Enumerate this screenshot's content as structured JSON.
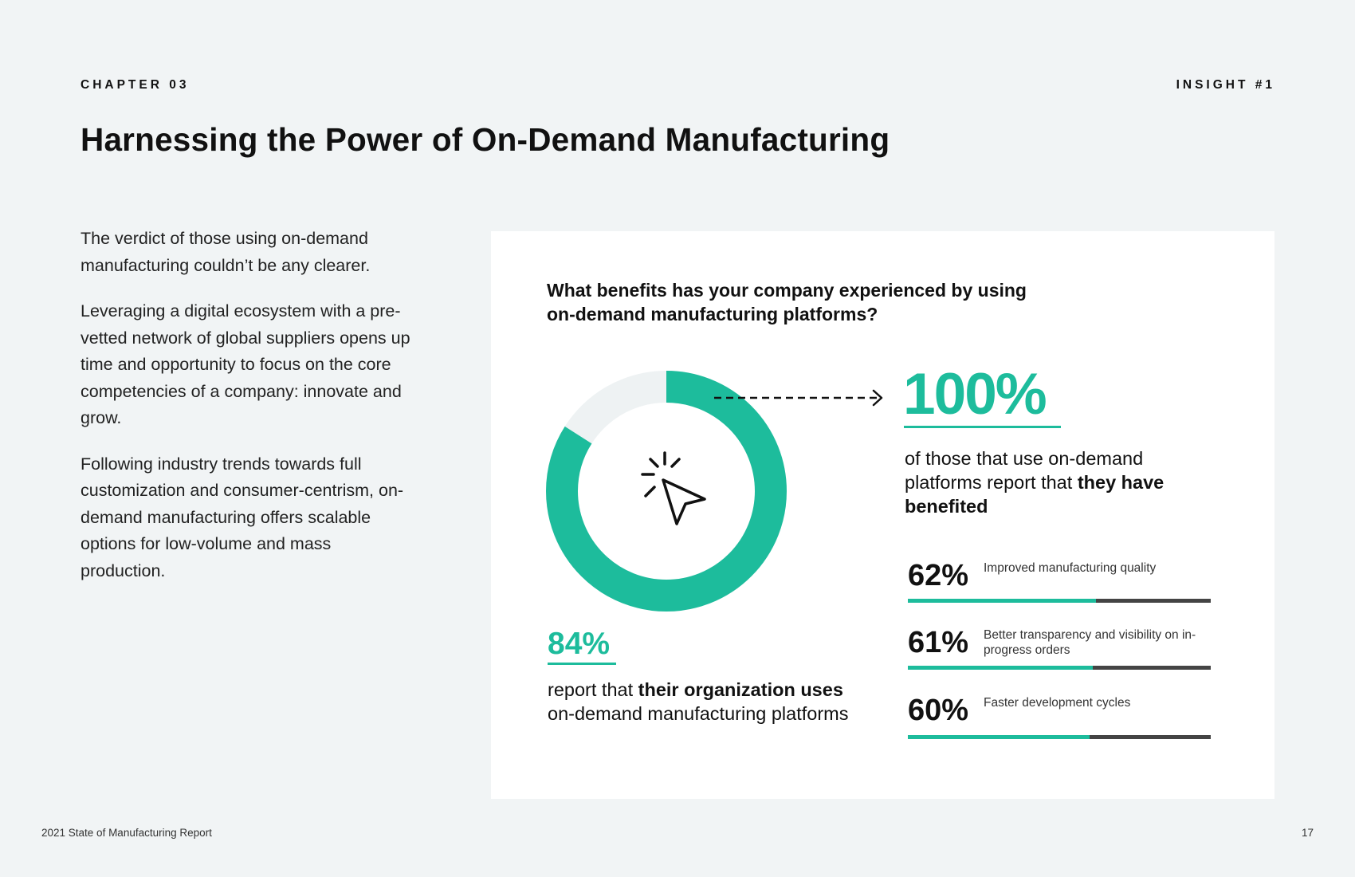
{
  "header": {
    "chapter": "CHAPTER 03",
    "insight": "INSIGHT #1",
    "title": "Harnessing the Power of On-Demand Manufacturing"
  },
  "intro": {
    "paragraphs": [
      "The verdict of those using on-demand manufacturing couldn’t be any clearer.",
      "Leveraging a digital ecosystem with a pre-vetted network of global suppliers opens up time and opportunity to focus on the core competencies of a company: innovate and grow.",
      "Following industry trends towards full customization and consumer-centrism, on-demand manufacturing offers scalable options for low-volume and mass production."
    ]
  },
  "card": {
    "question": "What benefits has your company experienced by using on-demand manufacturing platforms?",
    "usage": {
      "value": "84%",
      "percent": 84,
      "desc_pre": "report that ",
      "desc_bold": "their organization uses",
      "desc_post": " on-demand manufacturing platforms"
    },
    "benefit": {
      "value": "100%",
      "desc_pre": "of those that use on-demand platforms report that ",
      "desc_bold": "they have benefited"
    },
    "breakdown": [
      {
        "pct": "62%",
        "value": 62,
        "label": "Improved manufacturing quality"
      },
      {
        "pct": "61%",
        "value": 61,
        "label": "Better transparency and visibility on in-progress orders"
      },
      {
        "pct": "60%",
        "value": 60,
        "label": "Faster development cycles"
      }
    ]
  },
  "colors": {
    "accent": "#1dbc9c",
    "track": "#eef2f3",
    "bar_track": "#444444",
    "background": "#f1f4f5"
  },
  "footer": {
    "report": "2021 State of Manufacturing Report",
    "page": "17"
  }
}
